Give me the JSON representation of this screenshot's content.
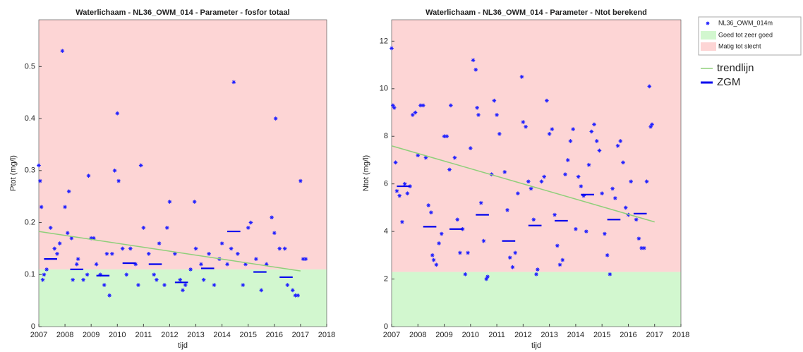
{
  "chart_data": [
    {
      "type": "scatter",
      "title": "Waterlichaam - NL36_OWM_014 - Parameter - fosfor totaal",
      "x_label": "tijd",
      "y_label": "Ptot (mg/l)",
      "xlim": [
        2007,
        2018
      ],
      "xticks": [
        2007,
        2008,
        2009,
        2010,
        2011,
        2012,
        2013,
        2014,
        2015,
        2016,
        2017,
        2018
      ],
      "ylim": [
        0,
        0.59
      ],
      "yticks": [
        0,
        0.1,
        0.2,
        0.3,
        0.4,
        0.5
      ],
      "zones": [
        {
          "name": "Goed tot zeer goed",
          "color": "#d2f7cf",
          "to": 0.11
        },
        {
          "name": "Matig tot slecht",
          "color": "#fdd5d5",
          "from": 0.11
        }
      ],
      "series": [
        {
          "type": "points",
          "name": "NL36_OWM_014m",
          "color": "#1f1fff",
          "x": [
            2007.0,
            2007.05,
            2007.1,
            2007.15,
            2007.2,
            2007.3,
            2007.45,
            2007.6,
            2007.7,
            2007.8,
            2007.9,
            2008.0,
            2008.1,
            2008.15,
            2008.25,
            2008.3,
            2008.45,
            2008.5,
            2008.7,
            2008.85,
            2008.9,
            2009.0,
            2009.1,
            2009.2,
            2009.35,
            2009.5,
            2009.6,
            2009.7,
            2009.8,
            2009.9,
            2010.0,
            2010.05,
            2010.2,
            2010.35,
            2010.5,
            2010.7,
            2010.8,
            2010.9,
            2011.0,
            2011.2,
            2011.4,
            2011.5,
            2011.6,
            2011.8,
            2011.9,
            2012.0,
            2012.2,
            2012.4,
            2012.5,
            2012.6,
            2012.8,
            2012.95,
            2013.0,
            2013.2,
            2013.3,
            2013.5,
            2013.7,
            2013.9,
            2014.0,
            2014.2,
            2014.35,
            2014.45,
            2014.6,
            2014.8,
            2014.9,
            2015.0,
            2015.1,
            2015.3,
            2015.5,
            2015.7,
            2015.9,
            2016.0,
            2016.05,
            2016.2,
            2016.4,
            2016.5,
            2016.7,
            2016.8,
            2016.9,
            2017.0,
            2017.1,
            2017.2
          ],
          "values": [
            0.31,
            0.28,
            0.23,
            0.09,
            0.1,
            0.11,
            0.19,
            0.15,
            0.14,
            0.16,
            0.53,
            0.23,
            0.18,
            0.26,
            0.17,
            0.09,
            0.12,
            0.13,
            0.09,
            0.1,
            0.29,
            0.17,
            0.17,
            0.12,
            0.1,
            0.08,
            0.14,
            0.06,
            0.14,
            0.3,
            0.41,
            0.28,
            0.15,
            0.1,
            0.15,
            0.12,
            0.08,
            0.31,
            0.19,
            0.14,
            0.1,
            0.09,
            0.16,
            0.08,
            0.19,
            0.24,
            0.14,
            0.09,
            0.07,
            0.08,
            0.11,
            0.24,
            0.15,
            0.12,
            0.09,
            0.14,
            0.08,
            0.13,
            0.16,
            0.12,
            0.15,
            0.47,
            0.14,
            0.08,
            0.12,
            0.19,
            0.2,
            0.13,
            0.07,
            0.12,
            0.21,
            0.18,
            0.4,
            0.15,
            0.15,
            0.08,
            0.07,
            0.06,
            0.06,
            0.28,
            0.13,
            0.13
          ]
        },
        {
          "type": "trend",
          "name": "trendlijn",
          "color": "#8fcf7a",
          "x": [
            2007,
            2017
          ],
          "values": [
            0.183,
            0.107
          ]
        },
        {
          "type": "zgm",
          "name": "ZGM",
          "color": "#0000ee",
          "x": [
            2007.45,
            2008.45,
            2009.45,
            2010.45,
            2011.45,
            2012.45,
            2013.45,
            2014.45,
            2015.45,
            2016.45
          ],
          "values": [
            0.13,
            0.11,
            0.098,
            0.122,
            0.12,
            0.085,
            0.112,
            0.183,
            0.105,
            0.095
          ]
        }
      ]
    },
    {
      "type": "scatter",
      "title": "Waterlichaam - NL36_OWM_014 - Parameter - Ntot berekend",
      "x_label": "tijd",
      "y_label": "Ntot (mg/l)",
      "xlim": [
        2007,
        2018
      ],
      "xticks": [
        2007,
        2008,
        2009,
        2010,
        2011,
        2012,
        2013,
        2014,
        2015,
        2016,
        2017,
        2018
      ],
      "ylim": [
        0,
        12.9
      ],
      "yticks": [
        0,
        2,
        4,
        6,
        8,
        10,
        12
      ],
      "zones": [
        {
          "color": "#d2f7cf",
          "to": 2.3
        },
        {
          "color": "#fdd5d5",
          "from": 2.3
        }
      ],
      "series": [
        {
          "type": "points",
          "color": "#1f1fff",
          "x": [
            2007.0,
            2007.05,
            2007.1,
            2007.15,
            2007.2,
            2007.3,
            2007.4,
            2007.5,
            2007.6,
            2007.7,
            2007.8,
            2007.9,
            2008.0,
            2008.1,
            2008.2,
            2008.3,
            2008.4,
            2008.5,
            2008.55,
            2008.6,
            2008.7,
            2008.8,
            2008.9,
            2009.0,
            2009.1,
            2009.2,
            2009.25,
            2009.4,
            2009.5,
            2009.6,
            2009.7,
            2009.8,
            2009.9,
            2010.0,
            2010.1,
            2010.2,
            2010.25,
            2010.3,
            2010.4,
            2010.5,
            2010.6,
            2010.65,
            2010.8,
            2010.9,
            2011.0,
            2011.1,
            2011.3,
            2011.4,
            2011.5,
            2011.6,
            2011.7,
            2011.8,
            2011.95,
            2012.0,
            2012.1,
            2012.2,
            2012.3,
            2012.4,
            2012.5,
            2012.55,
            2012.7,
            2012.8,
            2012.9,
            2013.0,
            2013.1,
            2013.2,
            2013.3,
            2013.4,
            2013.5,
            2013.6,
            2013.7,
            2013.8,
            2013.9,
            2014.0,
            2014.1,
            2014.2,
            2014.3,
            2014.4,
            2014.5,
            2014.6,
            2014.7,
            2014.8,
            2014.9,
            2015.0,
            2015.1,
            2015.2,
            2015.3,
            2015.4,
            2015.5,
            2015.6,
            2015.7,
            2015.8,
            2015.9,
            2016.0,
            2016.1,
            2016.3,
            2016.4,
            2016.5,
            2016.6,
            2016.7,
            2016.8,
            2016.85,
            2016.9
          ],
          "values": [
            11.7,
            9.3,
            9.2,
            6.9,
            5.7,
            5.5,
            4.4,
            6.0,
            5.6,
            5.9,
            8.9,
            9.0,
            7.2,
            9.3,
            9.3,
            7.1,
            5.1,
            4.8,
            3.0,
            2.8,
            2.6,
            3.5,
            3.9,
            8.0,
            8.0,
            6.6,
            9.3,
            7.1,
            4.5,
            3.1,
            4.1,
            2.2,
            3.1,
            7.5,
            11.2,
            10.8,
            9.2,
            8.9,
            5.2,
            3.6,
            2.0,
            2.1,
            6.4,
            9.5,
            8.9,
            8.1,
            6.5,
            4.9,
            2.9,
            2.5,
            3.1,
            5.6,
            10.5,
            8.6,
            8.4,
            6.1,
            5.8,
            4.5,
            2.2,
            2.4,
            6.1,
            6.3,
            9.5,
            8.1,
            8.3,
            4.7,
            3.4,
            2.6,
            2.8,
            6.4,
            7.0,
            7.8,
            8.3,
            4.1,
            6.3,
            5.9,
            5.5,
            4.0,
            6.8,
            8.2,
            8.5,
            7.8,
            7.4,
            5.6,
            3.9,
            3.0,
            2.2,
            5.8,
            5.4,
            7.6,
            7.8,
            6.9,
            5.0,
            4.7,
            6.1,
            4.5,
            3.7,
            3.3,
            3.3,
            6.1,
            10.1,
            8.4,
            8.5
          ]
        },
        {
          "type": "trend",
          "color": "#8fcf7a",
          "x": [
            2007,
            2017
          ],
          "values": [
            7.6,
            4.4
          ]
        },
        {
          "type": "zgm",
          "color": "#0000ee",
          "x": [
            2007.45,
            2008.45,
            2009.45,
            2010.45,
            2011.45,
            2012.45,
            2013.45,
            2014.45,
            2015.45,
            2016.45
          ],
          "values": [
            5.9,
            4.2,
            4.1,
            4.7,
            3.6,
            4.25,
            4.45,
            5.55,
            4.5,
            4.75
          ]
        }
      ]
    }
  ]
}
